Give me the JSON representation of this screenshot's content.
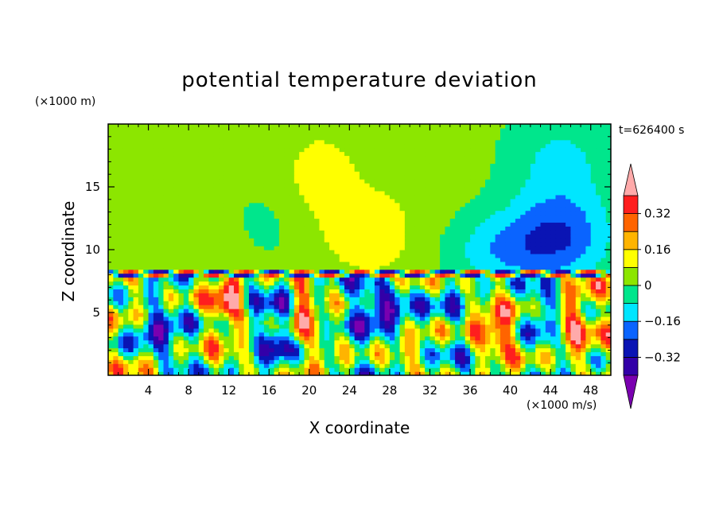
{
  "chart_data": {
    "type": "heatmap",
    "title": "potential temperature deviation",
    "xlabel": "X coordinate",
    "ylabel": "Z coordinate",
    "x_unit": "(×1000 m/s)",
    "y_unit": "(×1000 m)",
    "time_label": "t=626400 s",
    "xlim": [
      0,
      50
    ],
    "ylim": [
      0,
      20
    ],
    "x_ticks": [
      4,
      8,
      12,
      16,
      20,
      24,
      28,
      32,
      36,
      40,
      44,
      48
    ],
    "y_ticks": [
      5,
      10,
      15
    ],
    "colorbar": {
      "levels": [
        -0.48,
        -0.4,
        -0.32,
        -0.24,
        -0.16,
        -0.08,
        0,
        0.08,
        0.16,
        0.24,
        0.32,
        0.4
      ],
      "labels": [
        "0.32",
        "0.16",
        "0",
        "−0.16",
        "−0.32"
      ],
      "label_values": [
        0.32,
        0.16,
        0,
        -0.16,
        -0.32
      ],
      "colors": [
        "#7a00b0",
        "#3200a8",
        "#0a14b4",
        "#0a64ff",
        "#00e6ff",
        "#00e68c",
        "#8ce600",
        "#ffff00",
        "#ffb400",
        "#ff6400",
        "#ff1e1e",
        "#ffaaaa"
      ],
      "extend": "both"
    }
  }
}
